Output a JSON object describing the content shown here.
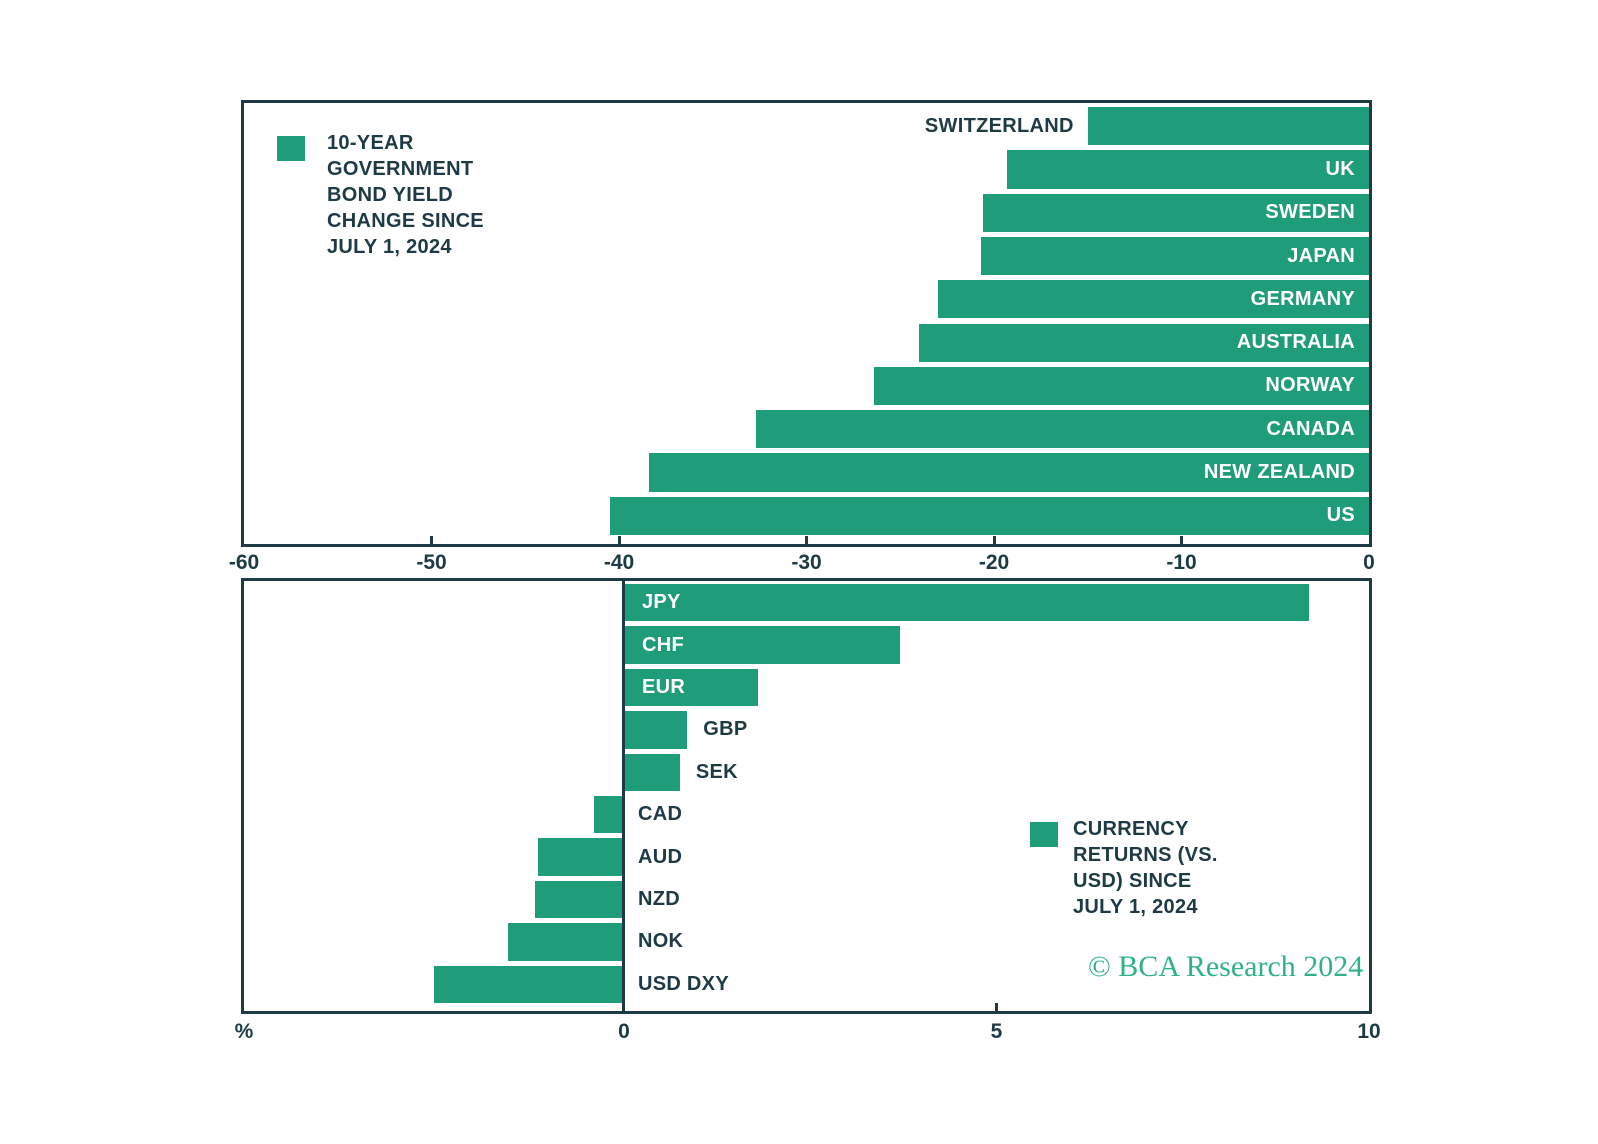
{
  "colors": {
    "bar": "#1f9c7a",
    "dark": "#1d3a45",
    "logo": "#2fb286",
    "background": "#ffffff",
    "bar_label_light": "#ffffff"
  },
  "footer": {
    "copyright": "© BCA Research 2024"
  },
  "chart_data": [
    {
      "type": "bar",
      "orientation": "horizontal",
      "title": "10-YEAR GOVERNMENT BOND YIELD CHANGE SINCE JULY 1, 2024",
      "legend_lines": [
        "10-YEAR",
        "GOVERNMENT",
        "BOND YIELD",
        "CHANGE SINCE",
        "JULY 1, 2024"
      ],
      "legend_position": "top-left-inside",
      "categories": [
        "SWITZERLAND",
        "UK",
        "SWEDEN",
        "JAPAN",
        "GERMANY",
        "AUSTRALIA",
        "NORWAY",
        "CANADA",
        "NEW ZEALAND",
        "US"
      ],
      "values": [
        -15.0,
        -19.3,
        -20.6,
        -20.7,
        -23.0,
        -24.0,
        -26.4,
        -32.7,
        -38.4,
        -40.5
      ],
      "label_placement": [
        "outside-left",
        "inside-right",
        "inside-right",
        "inside-right",
        "inside-right",
        "inside-right",
        "inside-right",
        "inside-right",
        "inside-right",
        "inside-right"
      ],
      "xlim": [
        -60,
        0
      ],
      "xticks": [
        -60,
        -50,
        -40,
        -30,
        -20,
        -10,
        0
      ],
      "xlabel": "",
      "grid": false,
      "zero_line": false
    },
    {
      "type": "bar",
      "orientation": "horizontal",
      "title": "CURRENCY RETURNS (VS. USD) SINCE JULY 1, 2024",
      "legend_lines": [
        "CURRENCY",
        "RETURNS (VS.",
        "USD) SINCE",
        "JULY 1, 2024"
      ],
      "legend_position": "middle-right-inside",
      "categories": [
        "JPY",
        "CHF",
        "EUR",
        "GBP",
        "SEK",
        "CAD",
        "AUD",
        "NZD",
        "NOK",
        "USD DXY"
      ],
      "values": [
        9.2,
        3.7,
        1.8,
        0.85,
        0.75,
        -0.4,
        -1.15,
        -1.2,
        -1.55,
        -2.55
      ],
      "label_placement": [
        "inside-left",
        "inside-left",
        "inside-left",
        "outside-right",
        "outside-right",
        "zero-right",
        "zero-right",
        "zero-right",
        "zero-right",
        "zero-right"
      ],
      "xlim": [
        -5.1,
        10
      ],
      "xticks": [
        0,
        5,
        10
      ],
      "xlabel": "%",
      "grid": false,
      "zero_line": true
    }
  ]
}
